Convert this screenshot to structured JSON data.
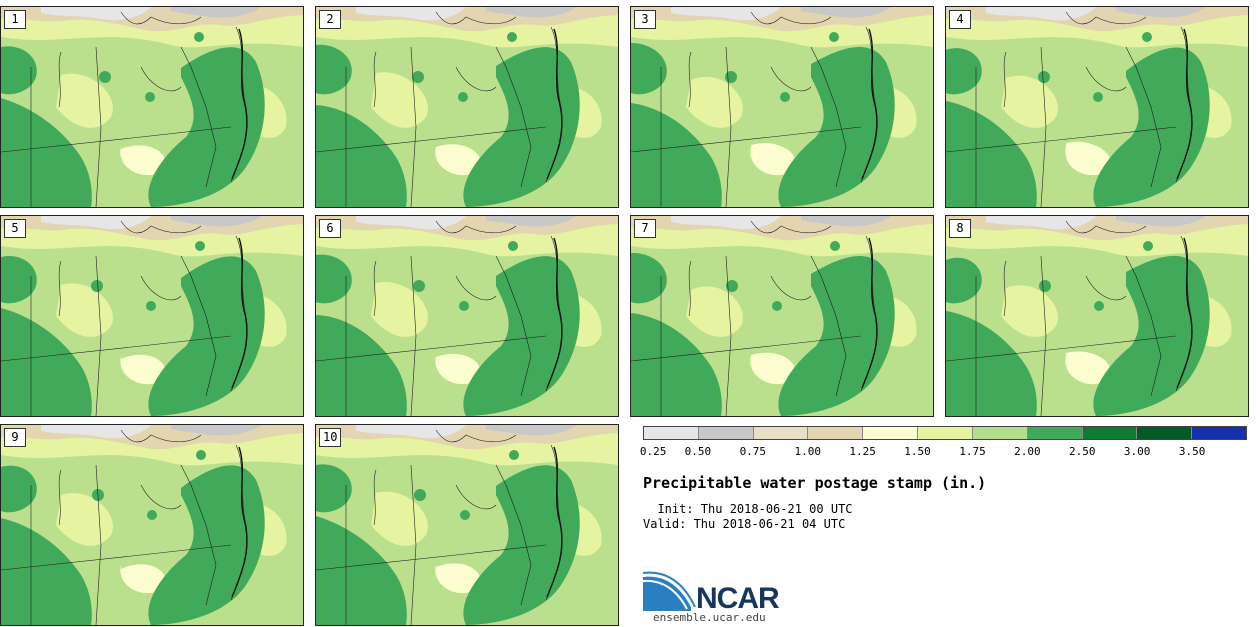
{
  "stamps": [
    "1",
    "2",
    "3",
    "4",
    "5",
    "6",
    "7",
    "8",
    "9",
    "10"
  ],
  "colorbar": {
    "ticks": [
      "0.25",
      "0.50",
      "0.75",
      "1.00",
      "1.25",
      "1.50",
      "1.75",
      "2.00",
      "2.50",
      "3.00",
      "3.50"
    ],
    "colors": [
      "#e6e6e6",
      "#c8c8c8",
      "#e8e0c4",
      "#e2d5b0",
      "#fdfdd2",
      "#e6f3a0",
      "#b5de8c",
      "#40a95a",
      "#0f7a32",
      "#065a25",
      "#1430aa"
    ]
  },
  "title": "Precipitable water postage stamp (in.)",
  "init": "  Init: Thu 2018-06-21 00 UTC",
  "valid": "Valid: Thu 2018-06-21 04 UTC",
  "logo": {
    "name": "NCAR",
    "url": "ensemble.ucar.edu"
  }
}
